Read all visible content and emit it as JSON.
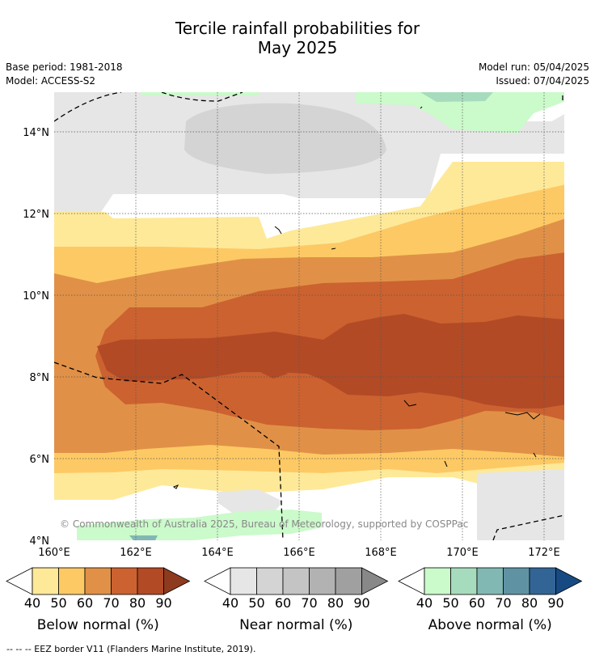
{
  "title": {
    "line1": "Tercile rainfall probabilities for",
    "line2": "May 2025"
  },
  "meta": {
    "base_period": "Base period: 1981-2018",
    "model": "Model: ACCESS-S2",
    "model_run": "Model run: 05/04/2025",
    "issued": "Issued: 07/04/2025"
  },
  "map": {
    "lat_labels": [
      "14°N",
      "12°N",
      "10°N",
      "8°N",
      "6°N",
      "4°N"
    ],
    "lon_labels": [
      "160°E",
      "162°E",
      "164°E",
      "166°E",
      "168°E",
      "170°E",
      "172°E"
    ],
    "copyright": "© Commonwealth of Australia 2025, Bureau of Meteorology, supported by COSPPac"
  },
  "legend": {
    "ticks": [
      "40",
      "50",
      "60",
      "70",
      "80",
      "90"
    ],
    "below": {
      "title": "Below normal (%)",
      "colors": [
        "#fee999",
        "#fdc964",
        "#e09147",
        "#cc6230",
        "#b24a26",
        "#8e3a1e"
      ]
    },
    "near": {
      "title": "Near normal (%)",
      "colors": [
        "#e6e6e6",
        "#d4d4d4",
        "#c4c4c4",
        "#b2b2b2",
        "#a0a0a0",
        "#888888"
      ]
    },
    "above": {
      "title": "Above normal (%)",
      "colors": [
        "#cbfacb",
        "#a6dcbd",
        "#82b8b3",
        "#5f93a3",
        "#336496",
        "#174a82"
      ]
    }
  },
  "footnote": "--  --  -- EEZ border V11 (Flanders Marine Institute, 2019)."
}
